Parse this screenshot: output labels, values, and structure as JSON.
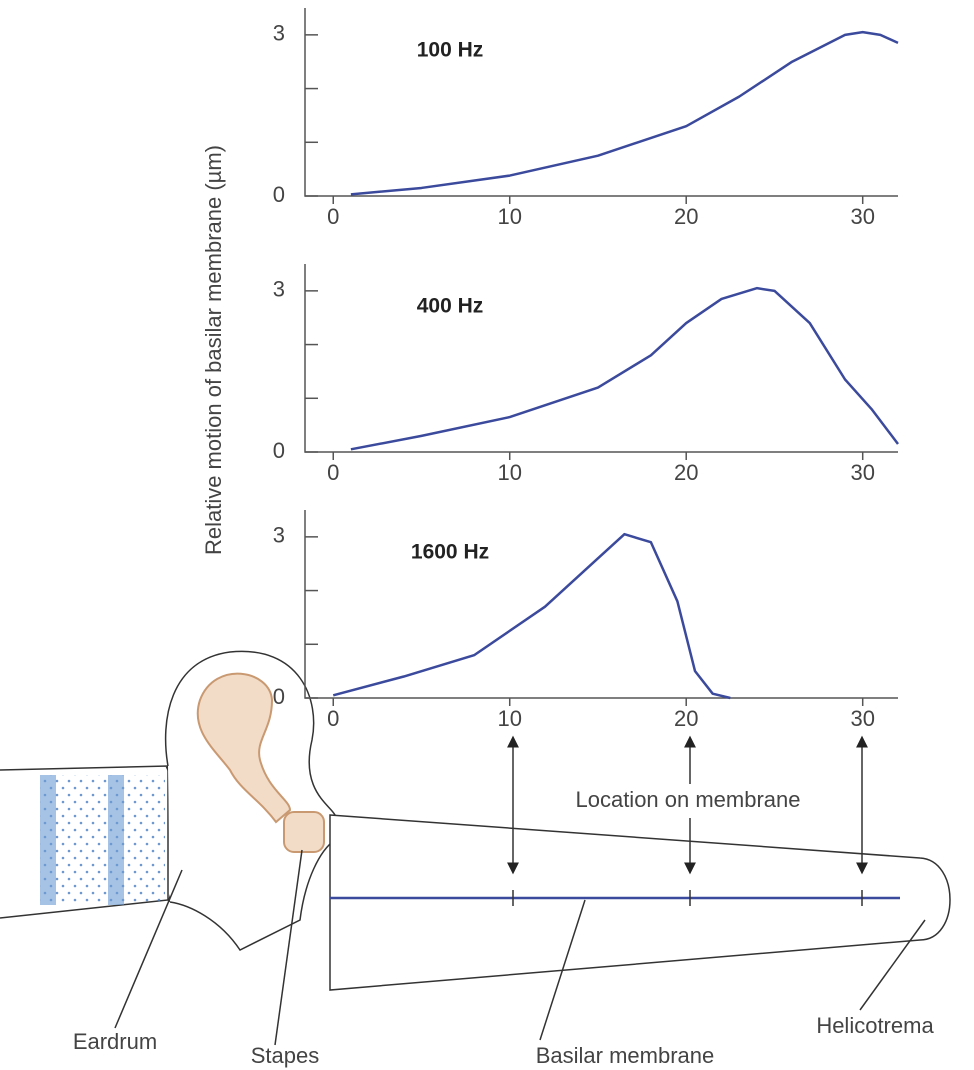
{
  "chart_data": [
    {
      "type": "line",
      "title": "100 Hz",
      "x": [
        1,
        5,
        10,
        15,
        20,
        23,
        26,
        29,
        30,
        31,
        32
      ],
      "values": [
        0.03,
        0.15,
        0.38,
        0.75,
        1.3,
        1.85,
        2.5,
        3.0,
        3.05,
        3.0,
        2.85
      ],
      "color": "#3b4a9c",
      "xlim": [
        -1.6,
        32
      ],
      "ylim": [
        0,
        3.5
      ],
      "xticks": [
        0,
        10,
        20,
        30
      ],
      "yticks": [
        0,
        3
      ],
      "yminorticks": [
        1,
        2
      ]
    },
    {
      "type": "line",
      "title": "400 Hz",
      "x": [
        1,
        5,
        10,
        15,
        18,
        20,
        22,
        24,
        25,
        27,
        29,
        30.5,
        32
      ],
      "values": [
        0.05,
        0.3,
        0.65,
        1.2,
        1.8,
        2.4,
        2.85,
        3.05,
        3.0,
        2.4,
        1.35,
        0.8,
        0.15
      ],
      "color": "#3b4a9c",
      "xlim": [
        -1.6,
        32
      ],
      "ylim": [
        0,
        3.5
      ],
      "xticks": [
        0,
        10,
        20,
        30
      ],
      "yticks": [
        0,
        3
      ],
      "yminorticks": [
        1,
        2
      ]
    },
    {
      "type": "line",
      "title": "1600 Hz",
      "x": [
        0,
        4,
        8,
        12,
        15,
        16.5,
        18,
        19.5,
        20.5,
        21.5,
        22.5
      ],
      "values": [
        0.05,
        0.4,
        0.8,
        1.7,
        2.6,
        3.05,
        2.9,
        1.8,
        0.5,
        0.08,
        0
      ],
      "color": "#3b4a9c",
      "xlim": [
        -1.6,
        32
      ],
      "ylim": [
        0,
        3.5
      ],
      "xticks": [
        0,
        10,
        20,
        30
      ],
      "yticks": [
        0,
        3
      ],
      "yminorticks": [
        1,
        2
      ]
    }
  ],
  "figure": {
    "ylabel": "Relative motion of basilar membrane (µm)"
  },
  "diagram": {
    "location": "Location on membrane",
    "eardrum": "Eardrum",
    "stapes": "Stapes",
    "basilar": "Basilar membrane",
    "helicotrema": "Helicotrema"
  }
}
